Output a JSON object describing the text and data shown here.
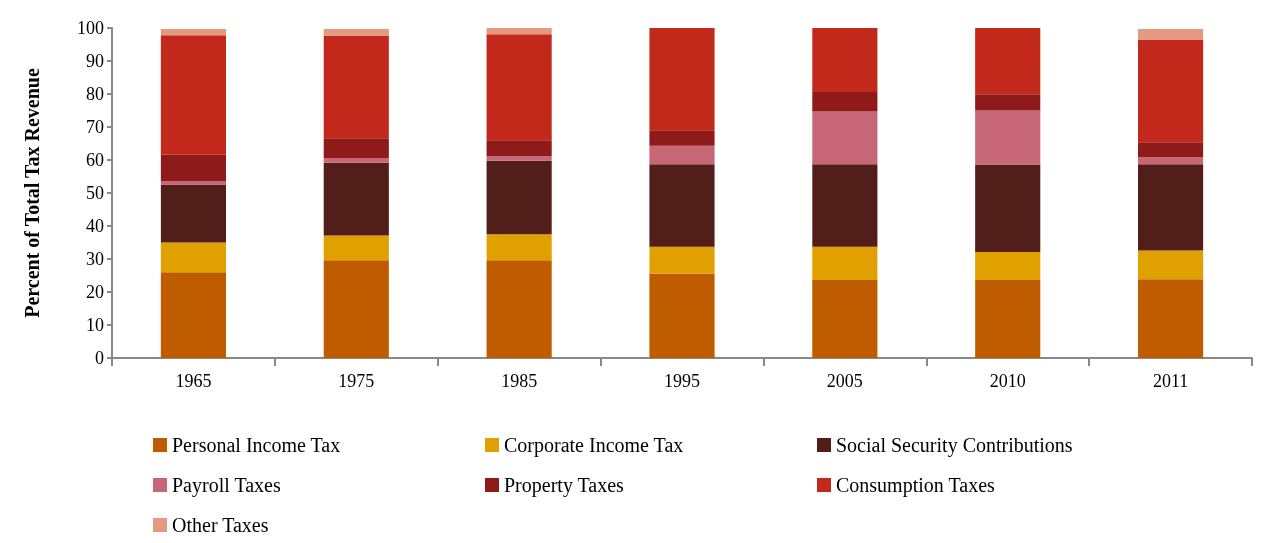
{
  "chart_data": {
    "type": "bar",
    "stacked": true,
    "ylabel": "Percent of Total Tax Revenue",
    "categories": [
      "1965",
      "1975",
      "1985",
      "1995",
      "2005",
      "2010",
      "2011"
    ],
    "series": [
      {
        "name": "Personal Income Tax",
        "color": "#c05c00",
        "values": [
          26,
          29.6,
          29.6,
          25.5,
          23.6,
          23.6,
          23.9
        ]
      },
      {
        "name": "Corporate Income Tax",
        "color": "#e0a000",
        "values": [
          9,
          7.5,
          7.9,
          8.2,
          10.1,
          8.5,
          8.7
        ]
      },
      {
        "name": "Social Security Contributions",
        "color": "#521e1a",
        "values": [
          17.6,
          22.1,
          22.3,
          25,
          25,
          26.5,
          26.1
        ]
      },
      {
        "name": "Payroll Taxes",
        "color": "#c66677",
        "values": [
          1,
          1.4,
          1.3,
          5.6,
          16,
          16.4,
          2.1
        ]
      },
      {
        "name": "Property Taxes",
        "color": "#8e1a1a",
        "values": [
          8,
          6,
          4.9,
          4.7,
          5.9,
          4.9,
          4.6
        ]
      },
      {
        "name": "Consumption Taxes",
        "color": "#c3291b",
        "values": [
          36.2,
          31,
          32.1,
          31,
          19.4,
          20.1,
          31.1
        ]
      },
      {
        "name": "Other Taxes",
        "color": "#e39a80",
        "values": [
          1.9,
          2.1,
          1.9,
          0,
          0,
          0,
          3.2
        ]
      }
    ],
    "ylim": [
      0,
      100
    ],
    "yticks": [
      0,
      10,
      20,
      30,
      40,
      50,
      60,
      70,
      80,
      90,
      100
    ],
    "grid": false,
    "legend": "bottom"
  }
}
